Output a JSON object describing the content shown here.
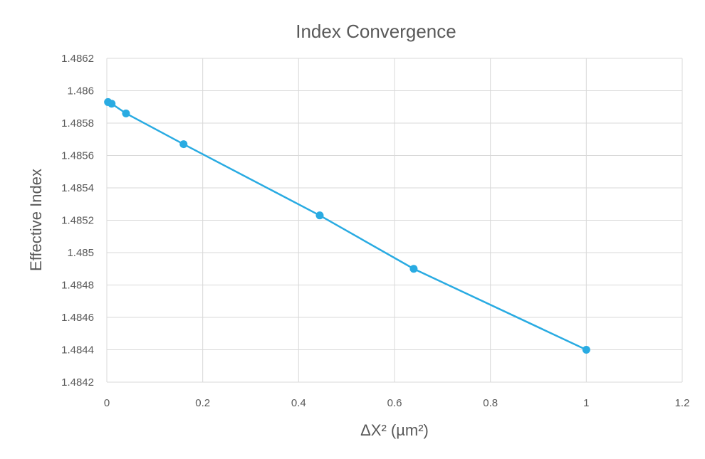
{
  "chart_data": {
    "type": "scatter",
    "title": "Index Convergence",
    "xlabel": "ΔX² (µm²)",
    "ylabel": "Effective Index",
    "xlim": [
      0,
      1.2
    ],
    "ylim": [
      1.4842,
      1.4862
    ],
    "x_ticks": [
      "0",
      "0.2",
      "0.4",
      "0.6",
      "0.8",
      "1",
      "1.2"
    ],
    "y_ticks": [
      "1.4842",
      "1.4844",
      "1.4846",
      "1.4848",
      "1.485",
      "1.4852",
      "1.4854",
      "1.4856",
      "1.4858",
      "1.486",
      "1.4862"
    ],
    "grid": true,
    "connected": true,
    "colors": {
      "series": "#29abe2"
    },
    "series": [
      {
        "x": [
          0.0025,
          0.01,
          0.04,
          0.16,
          0.444,
          0.64,
          1.0
        ],
        "y": [
          1.48593,
          1.48592,
          1.48586,
          1.48567,
          1.48523,
          1.4849,
          1.4844
        ]
      }
    ]
  }
}
